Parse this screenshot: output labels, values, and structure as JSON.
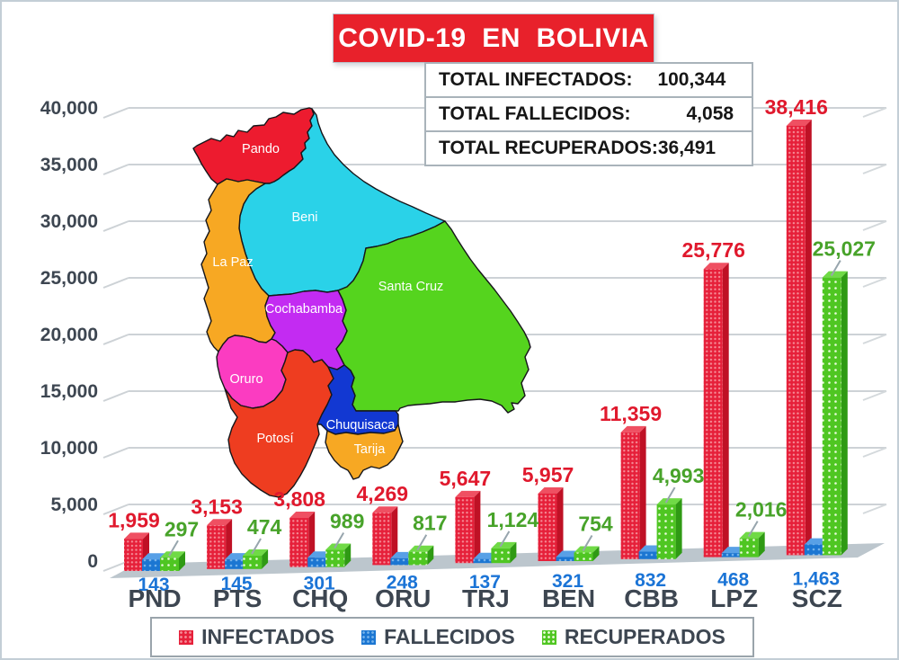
{
  "title": "COVID-19  EN  BOLIVIA",
  "totals": {
    "rows": [
      {
        "label": "TOTAL INFECTADOS:",
        "value": "100,344"
      },
      {
        "label": "TOTAL FALLECIDOS:",
        "value": "4,058"
      },
      {
        "label": "TOTAL RECUPERADOS:",
        "value": "36,491"
      }
    ]
  },
  "map": {
    "departments": [
      {
        "id": "pando",
        "label": "Pando",
        "color": "#ed1b2f"
      },
      {
        "id": "beni",
        "label": "Beni",
        "color": "#2ad2e8"
      },
      {
        "id": "lapaz",
        "label": "La Paz",
        "color": "#f7a823"
      },
      {
        "id": "santacruz",
        "label": "Santa Cruz",
        "color": "#55d41e"
      },
      {
        "id": "cochabamba",
        "label": "Cochabamba",
        "color": "#c32bf2"
      },
      {
        "id": "oruro",
        "label": "Oruro",
        "color": "#fb3cc1"
      },
      {
        "id": "potosi",
        "label": "Potosí",
        "color": "#ee3d20"
      },
      {
        "id": "chuquisaca",
        "label": "Chuquisaca",
        "color": "#1238d2"
      },
      {
        "id": "tarija",
        "label": "Tarija",
        "color": "#f7a823"
      }
    ]
  },
  "chart_data": {
    "type": "bar",
    "title": "COVID-19 EN BOLIVIA",
    "categories": [
      "PND",
      "PTS",
      "CHQ",
      "ORU",
      "TRJ",
      "BEN",
      "CBB",
      "LPZ",
      "SCZ"
    ],
    "series": [
      {
        "name": "INFECTADOS",
        "values": [
          1959,
          3153,
          3808,
          4269,
          5647,
          5957,
          11359,
          25776,
          38416
        ],
        "front": "#e6203a",
        "dot": "#f58b96",
        "side": "#bf1125",
        "top": "#ef5062",
        "label_color": "#e0192d"
      },
      {
        "name": "FALLECIDOS",
        "values": [
          143,
          145,
          301,
          248,
          137,
          321,
          832,
          468,
          1463
        ],
        "front": "#1b76d2",
        "dot": "#74b2ea",
        "side": "#11559f",
        "top": "#58a0e6",
        "label_color": "#1b74d6"
      },
      {
        "name": "RECUPERADOS",
        "values": [
          297,
          474,
          989,
          817,
          1124,
          754,
          4993,
          2016,
          25027
        ],
        "front": "#4fc622",
        "dot": "#e9fbda",
        "side": "#2f9a14",
        "top": "#70da46",
        "label_color": "#48a32a"
      }
    ],
    "ylim": [
      0,
      40000
    ],
    "ytick_step": 5000,
    "ytick_labels": [
      "0",
      "5,000",
      "10,000",
      "15,000",
      "20,000",
      "25,000",
      "30,000",
      "35,000",
      "40,000"
    ],
    "grid": true,
    "legend_position": "bottom",
    "axis_label_color": "#3d4651"
  }
}
